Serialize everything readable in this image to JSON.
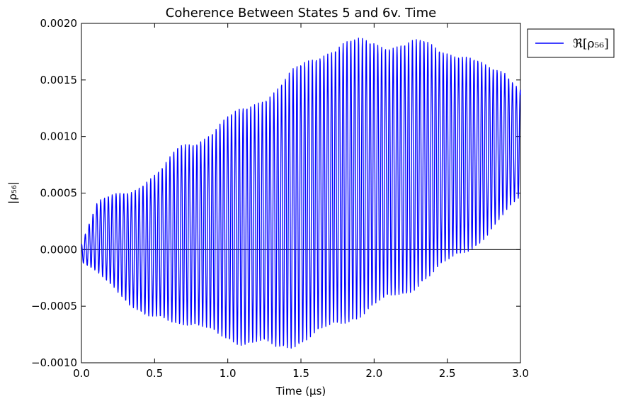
{
  "chart_data": {
    "type": "line",
    "title": "Coherence Between States 5 and 6v. Time",
    "xlabel": "Time (μs)",
    "ylabel": "|ρ₅₆|",
    "xlim": [
      0.0,
      3.0
    ],
    "ylim": [
      -0.001,
      0.002
    ],
    "x_ticks": [
      "0.0",
      "0.5",
      "1.0",
      "1.5",
      "2.0",
      "2.5",
      "3.0"
    ],
    "y_ticks": [
      "−0.0010",
      "−0.0005",
      "0.0000",
      "0.0005",
      "0.0010",
      "0.0015",
      "0.0020"
    ],
    "x_tick_values": [
      0.0,
      0.5,
      1.0,
      1.5,
      2.0,
      2.5,
      3.0
    ],
    "y_tick_values": [
      -0.001,
      -0.0005,
      0.0,
      0.0005,
      0.001,
      0.0015,
      0.002
    ],
    "zero_line": 0.0,
    "grid": false,
    "legend_position": "outside-top-right",
    "series": [
      {
        "name": "ℜ[ρ₅₆]",
        "color": "#0000ff",
        "oscillation_period_us": 0.0263,
        "peaks": [
          5e-05,
          0.00042,
          0.00048,
          0.00052,
          0.00064,
          0.00073,
          0.00089,
          0.00092,
          0.00102,
          0.00115,
          0.00125,
          0.00138,
          0.00146,
          0.00156,
          0.00163,
          0.00172,
          0.00179,
          0.00184,
          0.00187,
          0.00186,
          0.00183,
          0.00181,
          0.00175,
          0.00171,
          0.00167,
          0.00162,
          0.00161,
          0.00143
        ],
        "troughs": [
          -0.00011,
          -0.00019,
          -0.00032,
          -0.00052,
          -0.00063,
          -0.0006,
          -0.00063,
          -0.00066,
          -0.0007,
          -0.00076,
          -0.00085,
          -0.00088,
          -0.00091,
          -0.00083,
          -0.00074,
          -0.00068,
          -0.00063,
          -0.00058,
          -0.00053,
          -0.00049,
          -0.0004,
          -0.00024,
          -0.00013,
          -5e-05,
          2e-05,
          0.00013,
          0.00028,
          0.00045
        ]
      }
    ]
  }
}
